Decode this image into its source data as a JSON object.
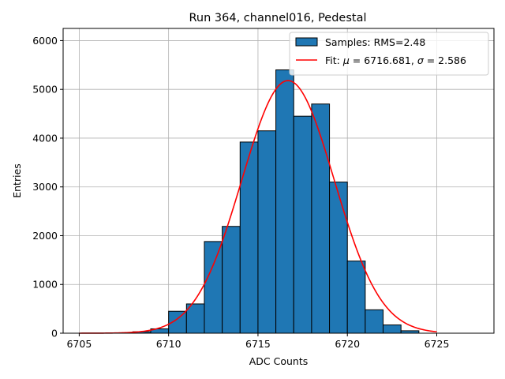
{
  "chart_data": {
    "type": "bar",
    "title": "Run 364, channel016, Pedestal",
    "xlabel": "ADC Counts",
    "ylabel": "Entries",
    "xlim": [
      6704.1,
      6728.2
    ],
    "ylim": [
      0,
      6250
    ],
    "grid": true,
    "legend_position": "top-right",
    "xticks": [
      6705,
      6710,
      6715,
      6720,
      6725
    ],
    "yticks": [
      0,
      1000,
      2000,
      3000,
      4000,
      5000,
      6000
    ],
    "bins": {
      "edges": [
        6708.0,
        6709.0,
        6710.0,
        6711.0,
        6712.0,
        6713.0,
        6714.0,
        6715.0,
        6716.0,
        6717.0,
        6718.0,
        6719.0,
        6720.0,
        6721.0,
        6722.0,
        6723.0,
        6724.0
      ],
      "counts": [
        30,
        90,
        450,
        600,
        1880,
        2190,
        3920,
        4150,
        5400,
        4450,
        4700,
        3100,
        1480,
        480,
        170,
        50
      ]
    },
    "series": [
      {
        "name": "Samples: RMS=2.48",
        "kind": "histogram",
        "color": "#1f77b4"
      },
      {
        "name": "Fit: $\\mu$ = 6716.681, $\\sigma$ = 2.586",
        "kind": "gaussian",
        "color": "#ff0000",
        "mu": 6716.681,
        "sigma": 2.586,
        "amplitude": 5180,
        "x_range": [
          6705,
          6725
        ]
      }
    ],
    "legend": {
      "samples_label": "Samples: RMS=2.48",
      "fit_label_prefix": "Fit: ",
      "fit_mu_sym": "μ",
      "fit_mid": " = 6716.681, ",
      "fit_sigma_sym": "σ",
      "fit_tail": " = 2.586"
    }
  }
}
